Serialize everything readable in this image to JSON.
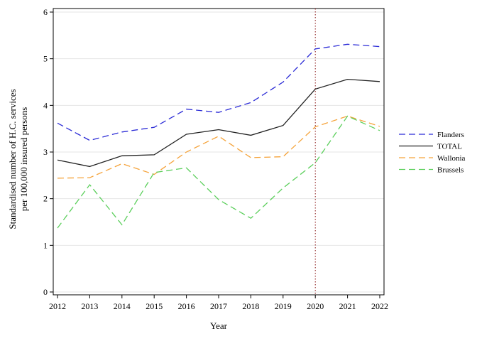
{
  "chart_data": {
    "type": "line",
    "xlabel": "Year",
    "ylabel_lines": [
      "Standardised number of H.C. services",
      "per 100,000 insured persons"
    ],
    "x": [
      2012,
      2013,
      2014,
      2015,
      2016,
      2017,
      2018,
      2019,
      2020,
      2021,
      2022
    ],
    "xlim": [
      2012,
      2022
    ],
    "ylim": [
      0,
      6
    ],
    "yticks": [
      0,
      1,
      2,
      3,
      4,
      5,
      6
    ],
    "grid": true,
    "legend_position": "right",
    "reference_line": {
      "x": 2020,
      "color": "#8b1a1a",
      "style": "dotted"
    },
    "series": [
      {
        "name": "Flanders",
        "color": "#2b2bd6",
        "dash": "dashed",
        "values": [
          3.62,
          3.25,
          3.43,
          3.53,
          3.92,
          3.85,
          4.06,
          4.5,
          5.21,
          5.31,
          5.26
        ]
      },
      {
        "name": "TOTAL",
        "color": "#222222",
        "dash": "solid",
        "values": [
          2.83,
          2.69,
          2.92,
          2.94,
          3.38,
          3.48,
          3.36,
          3.57,
          4.35,
          4.56,
          4.51
        ]
      },
      {
        "name": "Wallonia",
        "color": "#f5a33a",
        "dash": "dashed",
        "values": [
          2.44,
          2.45,
          2.75,
          2.52,
          3.0,
          3.34,
          2.88,
          2.9,
          3.54,
          3.77,
          3.55
        ]
      },
      {
        "name": "Brussels",
        "color": "#5ccf5c",
        "dash": "dashed",
        "values": [
          1.37,
          2.3,
          1.44,
          2.56,
          2.66,
          1.98,
          1.58,
          2.23,
          2.77,
          3.77,
          3.46
        ]
      }
    ]
  }
}
